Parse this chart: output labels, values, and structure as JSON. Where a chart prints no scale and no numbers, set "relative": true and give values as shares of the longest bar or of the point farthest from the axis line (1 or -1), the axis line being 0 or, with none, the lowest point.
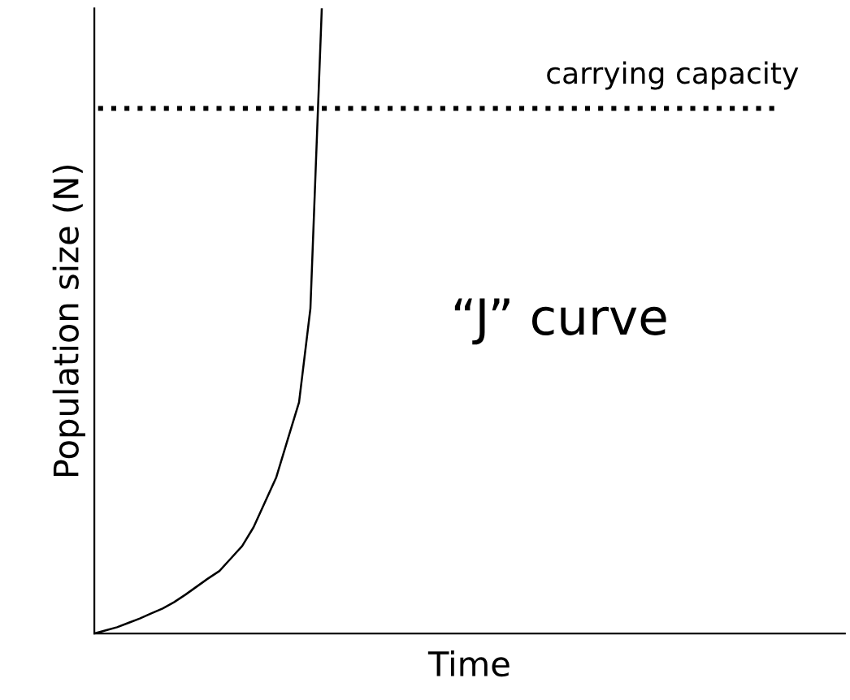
{
  "chart_data": {
    "type": "line",
    "relative": true,
    "xlabel": "Time",
    "ylabel": "Population size (N)",
    "color": "#000000",
    "grid": false,
    "legend": false,
    "marker": "none",
    "line_style": "solid",
    "categories": [
      null,
      null,
      null,
      null,
      null,
      null,
      null,
      null,
      null,
      null,
      null,
      null,
      null,
      null,
      null,
      null,
      null,
      null,
      null,
      null,
      null,
      null,
      null,
      null,
      null,
      null,
      null,
      null,
      null,
      null,
      null,
      null,
      null,
      null,
      null,
      null,
      null,
      null,
      null,
      null,
      null,
      null,
      null,
      null,
      null,
      null,
      null,
      null,
      null,
      null,
      null,
      null,
      null,
      null,
      null,
      null,
      null,
      null,
      null,
      null,
      null,
      null,
      null,
      null,
      null,
      null,
      null
    ],
    "values": [
      0,
      0.005,
      0.01,
      0.017,
      0.024,
      0.032,
      0.04,
      0.05,
      0.062,
      0.075,
      0.088,
      0.1,
      0.12,
      0.14,
      0.17,
      0.21,
      0.25,
      0.31,
      0.37,
      0.52,
      1.0,
      null,
      null,
      null,
      null,
      null,
      null,
      null,
      null,
      null,
      null,
      null,
      null,
      null,
      null,
      null,
      null,
      null,
      null,
      null,
      null,
      null,
      null,
      null,
      null,
      null,
      null,
      null,
      null,
      null,
      null,
      null,
      null,
      null,
      null,
      null,
      null,
      null,
      null,
      null,
      null,
      null,
      null,
      null,
      null,
      null,
      null
    ],
    "ref_lines": [
      {
        "axis": "y",
        "value": 0.84,
        "label": "carrying capacity",
        "line_style": "dotted",
        "color": "#000000"
      }
    ],
    "annotations": [
      "“J” curve"
    ]
  }
}
